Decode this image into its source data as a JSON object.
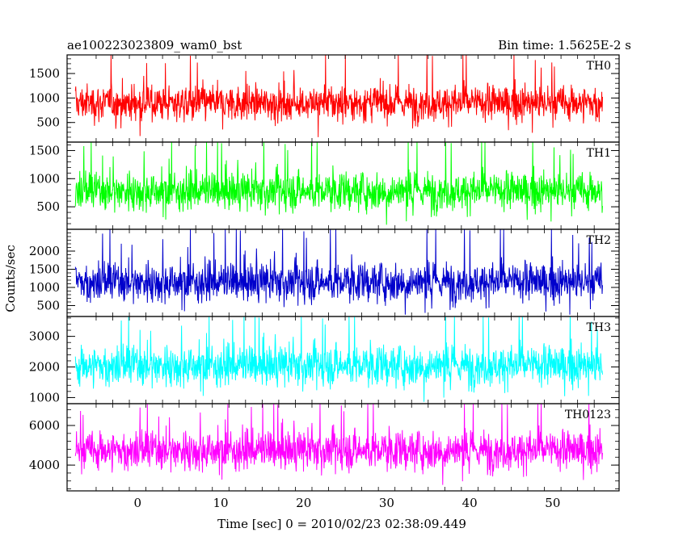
{
  "chart_data": {
    "type": "line",
    "title": "ae100223023809_wam0_bst",
    "subtitle": "Bin time: 1.5625E-2 s",
    "xlabel": "Time [sec] 0 = 2010/02/23 02:38:09.449",
    "ylabel": "Counts/sec",
    "xlim": [
      -8.5,
      58
    ],
    "data_range": [
      -7.5,
      56
    ],
    "xticks": [
      {
        "value": 0,
        "label": "0"
      },
      {
        "value": 10,
        "label": "10"
      },
      {
        "value": 20,
        "label": "20"
      },
      {
        "value": 30,
        "label": "30"
      },
      {
        "value": 40,
        "label": "40"
      },
      {
        "value": 50,
        "label": "50"
      }
    ],
    "grid": false,
    "panels": [
      {
        "name": "TH0",
        "color": "#ff0000",
        "ylim": [
          100,
          1880
        ],
        "mean": 900,
        "spread": 260,
        "min": 200,
        "max": 1880,
        "yticks": [
          {
            "value": 500,
            "label": "500"
          },
          {
            "value": 1000,
            "label": "1000"
          },
          {
            "value": 1500,
            "label": "1500"
          }
        ]
      },
      {
        "name": "TH1",
        "color": "#00ff00",
        "ylim": [
          100,
          1650
        ],
        "mean": 780,
        "spread": 240,
        "min": 180,
        "max": 1650,
        "yticks": [
          {
            "value": 500,
            "label": "500"
          },
          {
            "value": 1000,
            "label": "1000"
          },
          {
            "value": 1500,
            "label": "1500"
          }
        ]
      },
      {
        "name": "TH2",
        "color": "#0000cc",
        "ylim": [
          200,
          2600
        ],
        "mean": 1150,
        "spread": 380,
        "min": 250,
        "max": 2600,
        "yticks": [
          {
            "value": 500,
            "label": "500"
          },
          {
            "value": 1000,
            "label": "1000"
          },
          {
            "value": 1500,
            "label": "1500"
          },
          {
            "value": 2000,
            "label": "2000"
          }
        ]
      },
      {
        "name": "TH3",
        "color": "#00ffff",
        "ylim": [
          800,
          3650
        ],
        "mean": 2050,
        "spread": 470,
        "min": 850,
        "max": 3650,
        "yticks": [
          {
            "value": 1000,
            "label": "1000"
          },
          {
            "value": 2000,
            "label": "2000"
          },
          {
            "value": 3000,
            "label": "3000"
          }
        ]
      },
      {
        "name": "TH0123",
        "color": "#ff00ff",
        "ylim": [
          2700,
          7100
        ],
        "mean": 4750,
        "spread": 700,
        "min": 2700,
        "max": 7100,
        "yticks": [
          {
            "value": 4000,
            "label": "4000"
          },
          {
            "value": 6000,
            "label": "6000"
          }
        ]
      }
    ]
  }
}
